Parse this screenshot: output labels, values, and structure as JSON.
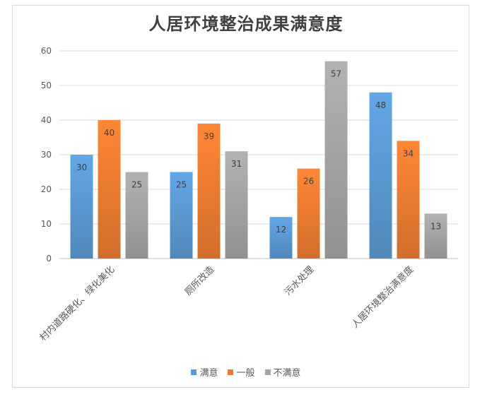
{
  "chart_data": {
    "type": "bar",
    "title": "人居环境整治成果满意度",
    "categories": [
      "村内道路硬化、绿化美化",
      "厕所改造",
      "污水处理",
      "人居环境整治满意度"
    ],
    "series": [
      {
        "name": "满意",
        "values": [
          30,
          25,
          12,
          48
        ],
        "color": "#5b9bd5"
      },
      {
        "name": "一般",
        "values": [
          40,
          39,
          26,
          34
        ],
        "color": "#ed7d31"
      },
      {
        "name": "不满意",
        "values": [
          25,
          31,
          57,
          13
        ],
        "color": "#a5a5a5"
      }
    ],
    "ylim": [
      0,
      60
    ],
    "yticks": [
      0,
      10,
      20,
      30,
      40,
      50,
      60
    ],
    "xlabel": "",
    "ylabel": "",
    "grid": true,
    "legend_position": "bottom",
    "data_labels": true
  }
}
